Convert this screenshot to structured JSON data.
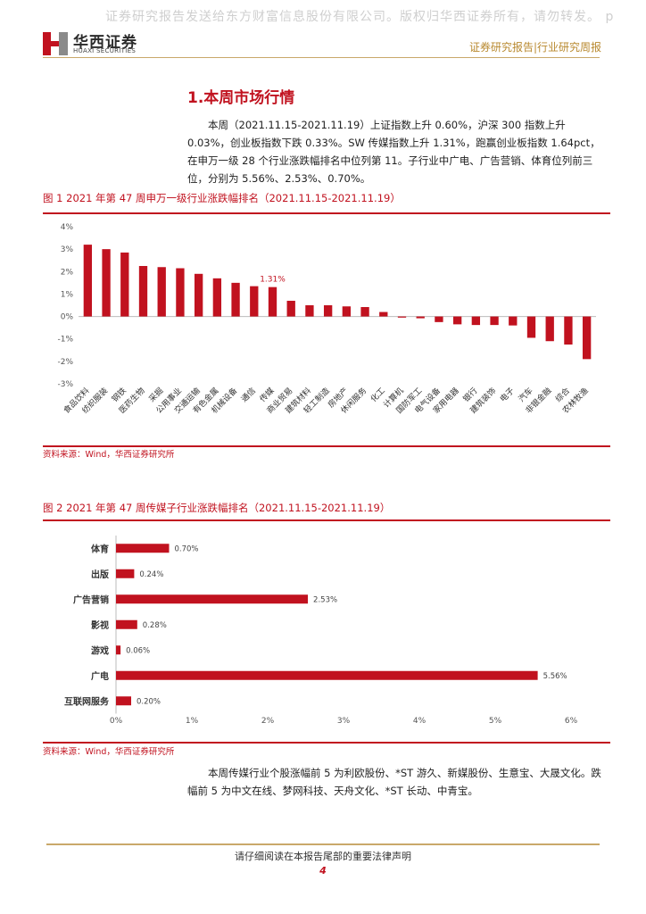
{
  "watermark": "证券研究报告发送给东方财富信息股份有限公司。版权归华西证券所有，请勿转发。 p",
  "logo": {
    "cn": "华西证券",
    "en": "HUAXI SECURITIES"
  },
  "header_right": "证券研究报告|行业研究周报",
  "section_title": "1.本周市场行情",
  "para1": "本周（2021.11.15-2021.11.19）上证指数上升 0.60%，沪深 300 指数上升 0.03%，创业板指数下跌 0.33%。SW 传媒指数上升 1.31%，跑赢创业板指数 1.64pct，在申万一级 28 个行业涨跌幅排名中位列第 11。子行业中广电、广告营销、体育位列前三位，分别为 5.56%、2.53%、0.70%。",
  "fig1": {
    "title": "图 1  2021 年第 47 周申万一级行业涨跌幅排名（2021.11.15-2021.11.19）",
    "source": "资料来源：Wind，华西证券研究所"
  },
  "fig2": {
    "title": "图 2  2021 年第 47 周传媒子行业涨跌幅排名（2021.11.15-2021.11.19）",
    "source": "资料来源：Wind，华西证券研究所"
  },
  "para2": "本周传媒行业个股涨幅前 5 为利欧股份、*ST 游久、新媒股份、生意宝、大晟文化。跌幅前 5 为中文在线、梦网科技、天舟文化、*ST 长动、中青宝。",
  "footer": {
    "disclaimer": "请仔细阅读在本报告尾部的重要法律声明",
    "page": "4"
  },
  "colors": {
    "accent": "#c1121f",
    "gold": "#c9a86a"
  },
  "chart_data": [
    {
      "type": "bar",
      "title": "",
      "categories": [
        "食品饮料",
        "纺织服装",
        "钢铁",
        "医药生物",
        "采掘",
        "公用事业",
        "交通运输",
        "有色金属",
        "机械设备",
        "通信",
        "传媒",
        "商业贸易",
        "建筑材料",
        "轻工制造",
        "房地产",
        "休闲服务",
        "化工",
        "计算机",
        "国防军工",
        "电气设备",
        "家用电器",
        "银行",
        "建筑装饰",
        "电子",
        "汽车",
        "非银金融",
        "综合",
        "农林牧渔"
      ],
      "values": [
        3.2,
        3.0,
        2.85,
        2.25,
        2.2,
        2.15,
        1.9,
        1.7,
        1.5,
        1.35,
        1.31,
        0.7,
        0.5,
        0.5,
        0.45,
        0.42,
        0.2,
        -0.05,
        -0.08,
        -0.25,
        -0.35,
        -0.38,
        -0.38,
        -0.4,
        -0.95,
        -1.1,
        -1.25,
        -1.9
      ],
      "highlight": {
        "category": "传媒",
        "label": "1.31%"
      },
      "yticks": [
        "3%",
        "2%",
        "1%",
        "0%",
        "-1%",
        "-2%",
        "-3%"
      ],
      "ylim": [
        -3,
        4
      ],
      "ytick_labels": [
        "4%",
        "3%",
        "2%",
        "1%",
        "0%",
        "-1%",
        "-2%",
        "-3%"
      ],
      "bar_color": "#c1121f",
      "grid": false
    },
    {
      "type": "bar",
      "orientation": "horizontal",
      "title": "",
      "categories": [
        "体育",
        "出版",
        "广告营销",
        "影视",
        "游戏",
        "广电",
        "互联网服务"
      ],
      "values": [
        0.7,
        0.24,
        2.53,
        0.28,
        0.06,
        5.56,
        0.2
      ],
      "data_labels": [
        "0.70%",
        "0.24%",
        "2.53%",
        "0.28%",
        "0.06%",
        "5.56%",
        "0.20%"
      ],
      "xlim": [
        0,
        6
      ],
      "xtick_labels": [
        "0%",
        "1%",
        "2%",
        "3%",
        "4%",
        "5%",
        "6%"
      ],
      "bar_color": "#c1121f",
      "grid": false
    }
  ]
}
